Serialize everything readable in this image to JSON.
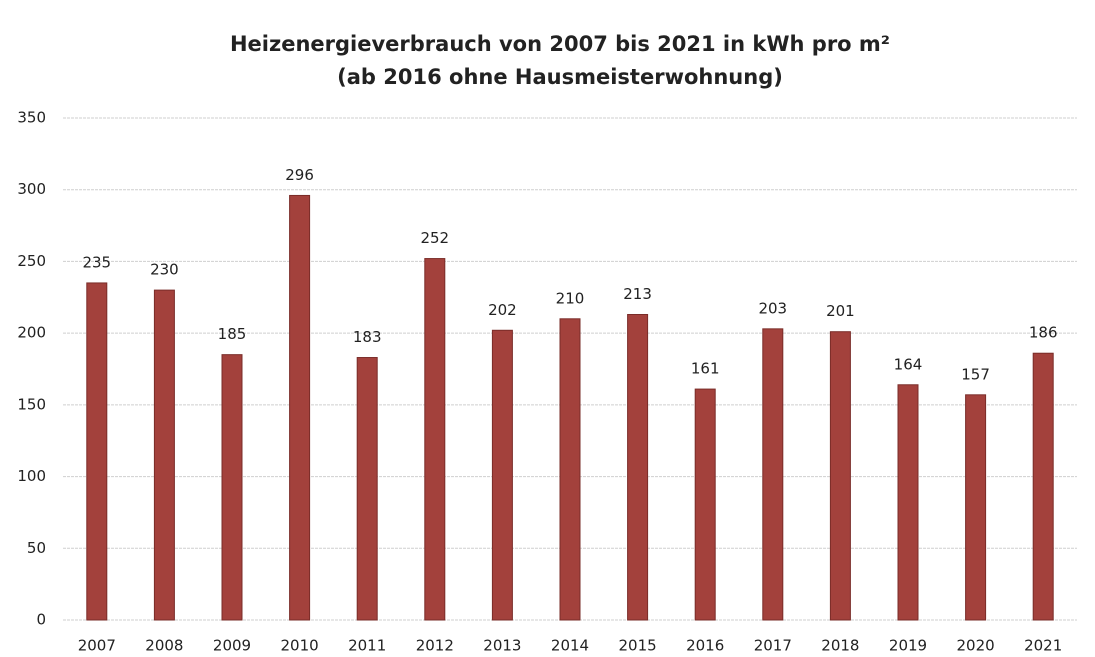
{
  "chart_data": {
    "type": "bar",
    "title": "Heizenergieverbrauch von 2007 bis 2021 in kWh pro m²",
    "subtitle": "(ab 2016 ohne Hausmeisterwohnung)",
    "categories": [
      "2007",
      "2008",
      "2009",
      "2010",
      "2011",
      "2012",
      "2013",
      "2014",
      "2015",
      "2016",
      "2017",
      "2018",
      "2019",
      "2020",
      "2021"
    ],
    "values": [
      235,
      230,
      185,
      296,
      183,
      252,
      202,
      210,
      213,
      161,
      203,
      201,
      164,
      157,
      186
    ],
    "color": "#a3413c",
    "ylim": [
      0,
      350
    ],
    "yticks": [
      0,
      50,
      100,
      150,
      200,
      250,
      300,
      350
    ],
    "grid": true
  }
}
